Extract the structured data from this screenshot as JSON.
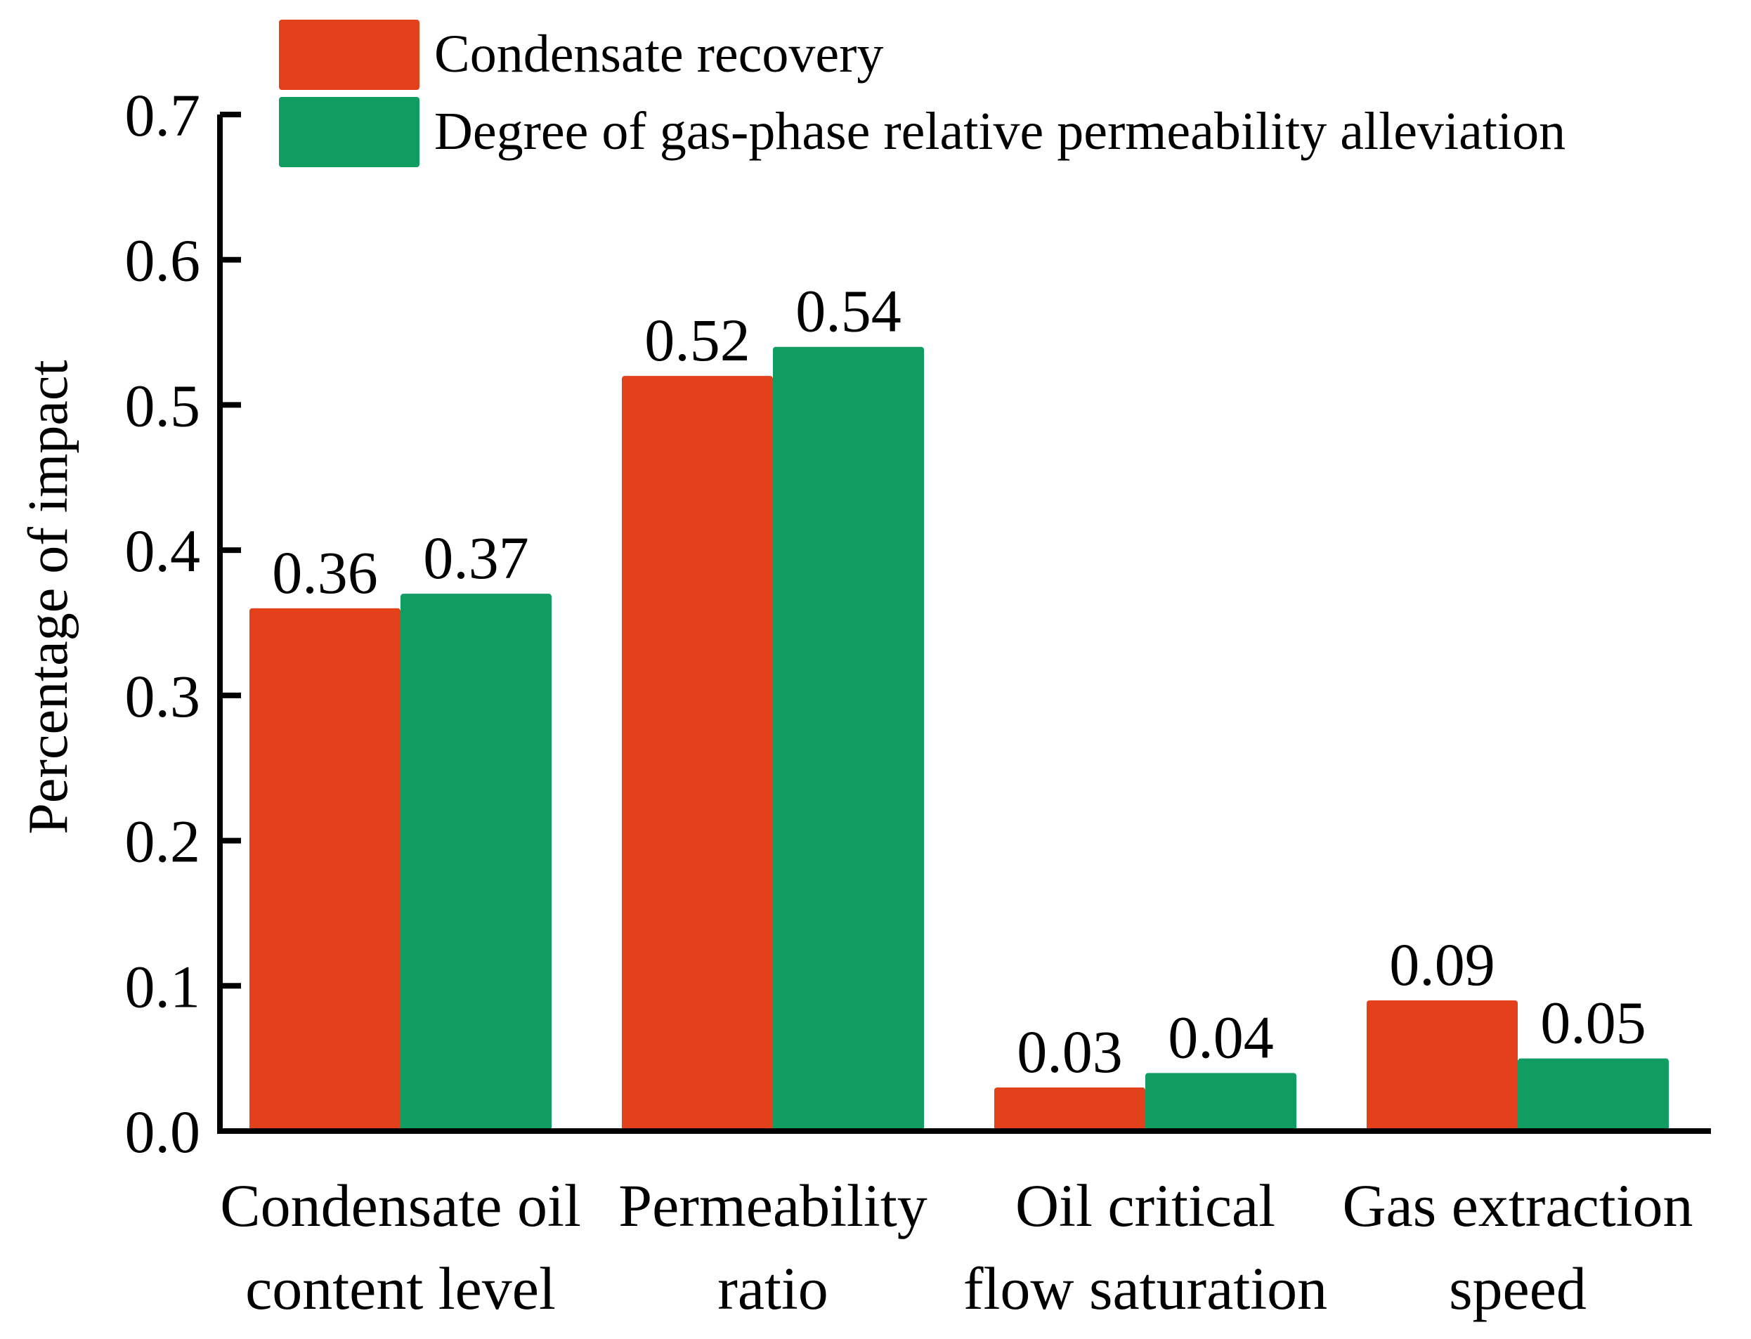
{
  "chart_data": {
    "type": "bar",
    "title": "",
    "xlabel": "",
    "ylabel": "Percentage of impact",
    "ylim": [
      0.0,
      0.7
    ],
    "yticks": [
      "0.0",
      "0.1",
      "0.2",
      "0.3",
      "0.4",
      "0.5",
      "0.6",
      "0.7"
    ],
    "grid": false,
    "legend_position": "top",
    "categories": [
      [
        "Condensate oil",
        "content level"
      ],
      [
        "Permeability",
        "ratio"
      ],
      [
        "Oil critical",
        "flow saturation"
      ],
      [
        "Gas extraction",
        "speed"
      ]
    ],
    "series": [
      {
        "name": "Condensate recovery",
        "color": "#e2411b",
        "values": [
          0.36,
          0.52,
          0.03,
          0.09
        ],
        "labels": [
          "0.36",
          "0.52",
          "0.03",
          "0.09"
        ]
      },
      {
        "name": "Degree of gas-phase relative permeability alleviation",
        "color": "#119c62",
        "values": [
          0.37,
          0.54,
          0.04,
          0.05
        ],
        "labels": [
          "0.37",
          "0.54",
          "0.04",
          "0.05"
        ]
      }
    ]
  }
}
